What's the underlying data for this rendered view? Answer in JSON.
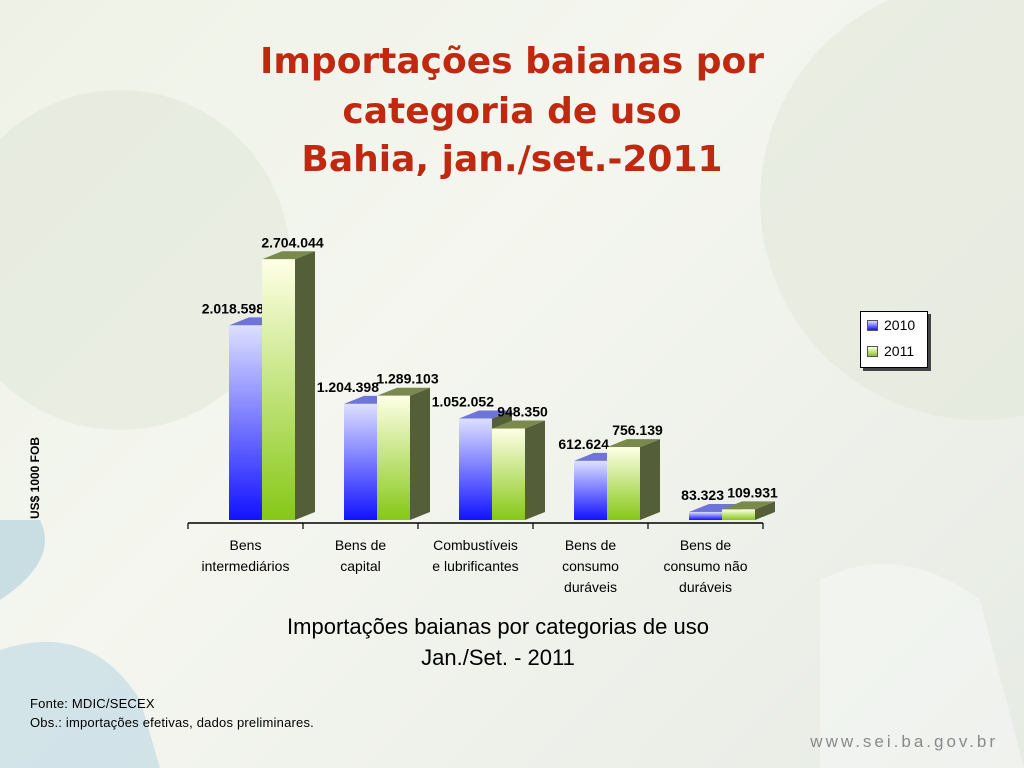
{
  "slide": {
    "title_lines": [
      "Importações baianas por",
      "categoria de uso",
      "Bahia, jan./set.-2011"
    ],
    "subtitle_lines": [
      "Importações baianas por categorias de uso",
      "Jan./Set. - 2011"
    ],
    "footer_source": "Fonte: MDIC/SECEX",
    "footer_note": "Obs.: importações efetivas, dados preliminares.",
    "website": "www.sei.ba.gov.br"
  },
  "chart_data": {
    "type": "bar",
    "categories": [
      [
        "Bens",
        "intermediários"
      ],
      [
        "Bens de",
        "capital"
      ],
      [
        "Combustíveis",
        "e lubrificantes"
      ],
      [
        "Bens de",
        "consumo",
        "duráveis"
      ],
      [
        "Bens de",
        "consumo não",
        "duráveis"
      ]
    ],
    "series": [
      {
        "name": "2010",
        "values": [
          2018598,
          1204398,
          1052052,
          612624,
          83323
        ],
        "labels": [
          "2.018.598",
          "1.204.398",
          "1.052.052",
          "612.624",
          "83.323"
        ]
      },
      {
        "name": "2011",
        "values": [
          2704044,
          1289103,
          948350,
          756139,
          109931
        ],
        "labels": [
          "2.704.044",
          "1.289.103",
          "948.350",
          "756.139",
          "109.931"
        ]
      }
    ],
    "ylabel": "US$ 1000 FOB",
    "ylim": [
      0,
      2800000
    ],
    "grid": false,
    "legend_position": "right",
    "colors": {
      "s2010_top": "#d8dcff",
      "s2010_bottom": "#1a1aff",
      "s2011_top": "#ffffe0",
      "s2011_bottom": "#8ccc1a",
      "side": "#545f3a"
    }
  }
}
